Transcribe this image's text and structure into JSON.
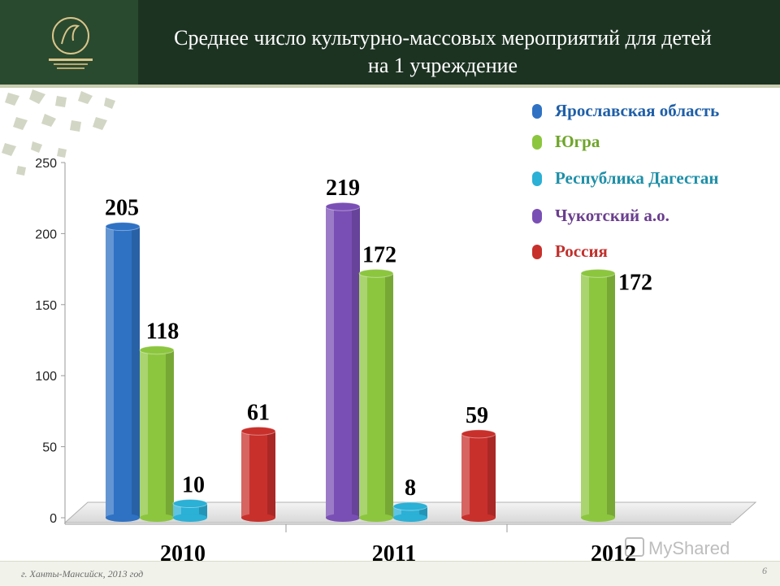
{
  "header": {
    "title_line1": "Среднее число культурно-массовых мероприятий для детей",
    "title_line2": "на 1 учреждение"
  },
  "chart_data": {
    "type": "bar",
    "title": "Среднее число культурно-массовых мероприятий для детей на 1 учреждение",
    "categories": [
      "2010",
      "2011",
      "2012"
    ],
    "series": [
      {
        "name": "Ярославская область",
        "color": "#2f72c4",
        "values": [
          205,
          null,
          null
        ]
      },
      {
        "name": "Югра",
        "color": "#8cc63f",
        "values": [
          118,
          172,
          172
        ]
      },
      {
        "name": "Республика Дагестан",
        "color": "#2bb0d6",
        "values": [
          10,
          8,
          null
        ]
      },
      {
        "name": "Чукотский а.о.",
        "color": "#7a4fb5",
        "values": [
          null,
          219,
          null
        ]
      },
      {
        "name": "Россия",
        "color": "#c8302c",
        "values": [
          61,
          59,
          null
        ]
      }
    ],
    "ylim": [
      0,
      250
    ],
    "yticks": [
      "0",
      "50",
      "100",
      "150",
      "200",
      "250"
    ],
    "grid": false,
    "legend": "top-right"
  },
  "legend_colors": {
    "yaroslavl": "#1f5fa8",
    "yugra": "#6fa52a",
    "dagestan": "#1e8fa8",
    "chukotka": "#6a3d8e",
    "russia": "#c0302c"
  },
  "watermark": {
    "text": "MyShared"
  },
  "footer": {
    "text": "г. Ханты-Мансийск, 2013 год",
    "page": "6"
  }
}
